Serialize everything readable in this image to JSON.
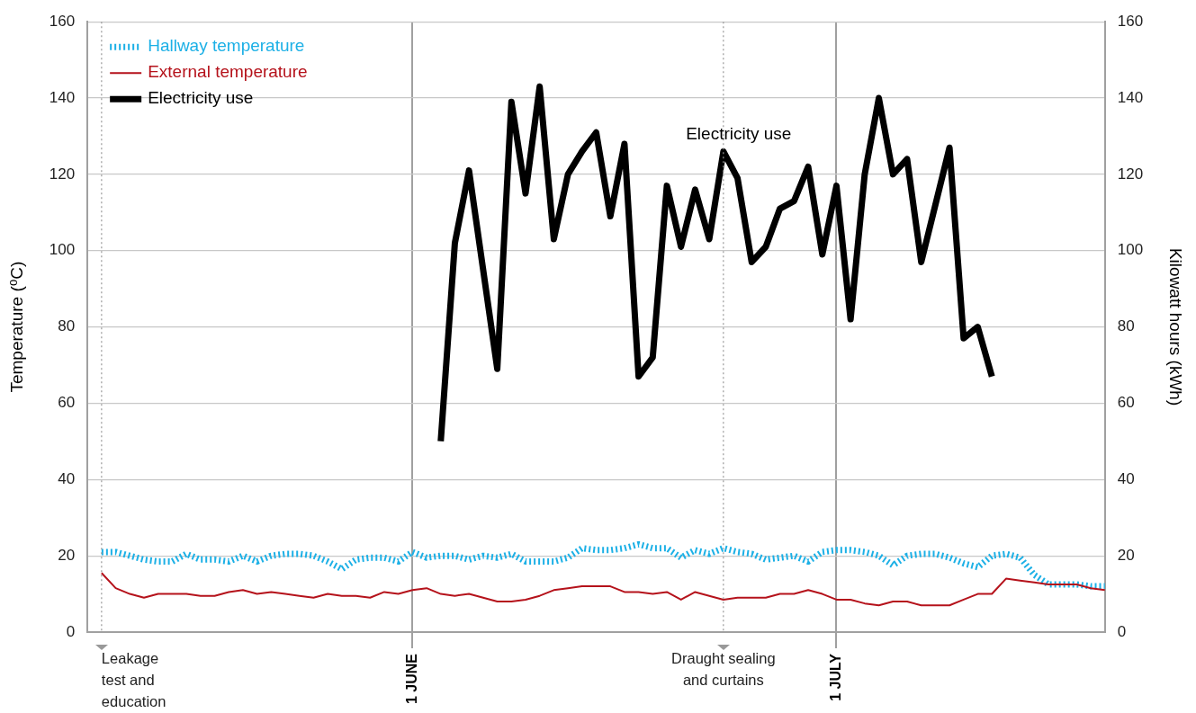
{
  "chart_data": {
    "type": "line",
    "xlabel": null,
    "ylabel": "Temperature (⁰C)",
    "y2label": "Kilowatt hours (kWh)",
    "xlim": [
      "--05-09",
      "--07-20"
    ],
    "xticks": [
      {
        "value": "--06-01",
        "label": "1 JUNE"
      },
      {
        "value": "--07-01",
        "label": "1 JULY"
      }
    ],
    "ylim": [
      0,
      160
    ],
    "yticks": [
      0,
      20,
      40,
      60,
      80,
      100,
      120,
      140,
      160
    ],
    "y2lim": [
      0,
      160
    ],
    "y2ticks": [
      0,
      20,
      40,
      60,
      80,
      100,
      120,
      140,
      160
    ],
    "grid": true,
    "legend": "top left",
    "marker": "none",
    "x": [
      "--05-10",
      "--05-11",
      "--05-12",
      "--05-13",
      "--05-14",
      "--05-15",
      "--05-16",
      "--05-17",
      "--05-18",
      "--05-19",
      "--05-20",
      "--05-21",
      "--05-22",
      "--05-23",
      "--05-24",
      "--05-25",
      "--05-26",
      "--05-27",
      "--05-28",
      "--05-29",
      "--05-30",
      "--05-31",
      "--06-01",
      "--06-02",
      "--06-03",
      "--06-04",
      "--06-05",
      "--06-06",
      "--06-07",
      "--06-08",
      "--06-09",
      "--06-10",
      "--06-11",
      "--06-12",
      "--06-13",
      "--06-14",
      "--06-15",
      "--06-16",
      "--06-17",
      "--06-18",
      "--06-19",
      "--06-20",
      "--06-21",
      "--06-22",
      "--06-23",
      "--06-24",
      "--06-25",
      "--06-26",
      "--06-27",
      "--06-28",
      "--06-29",
      "--06-30",
      "--07-01",
      "--07-02",
      "--07-03",
      "--07-04",
      "--07-05",
      "--07-06",
      "--07-07",
      "--07-08",
      "--07-09",
      "--07-10",
      "--07-11",
      "--07-12",
      "--07-13",
      "--07-14",
      "--07-15",
      "--07-16",
      "--07-17",
      "--07-18",
      "--07-19",
      "--07-20"
    ],
    "series": [
      {
        "name": "Hallway temperature",
        "color": "#1cb0e6",
        "line_style": "dotted",
        "values": [
          21,
          21,
          20,
          19,
          18.5,
          18.5,
          20.5,
          19,
          19,
          18.5,
          20,
          18.5,
          20,
          20.5,
          20.5,
          20,
          18.5,
          16.5,
          19,
          19.5,
          19.5,
          18.5,
          21,
          19.5,
          20,
          20,
          19,
          20,
          19.5,
          20.5,
          18.5,
          18.5,
          18.5,
          19.5,
          22,
          21.5,
          21.5,
          22,
          23,
          22,
          22,
          19.5,
          21.5,
          20.5,
          22,
          21,
          20.5,
          19,
          19.5,
          20,
          18.5,
          21,
          21.5,
          21.5,
          21,
          20,
          17.5,
          20,
          20.5,
          20.5,
          19.5,
          18,
          17,
          20,
          20.5,
          19.5,
          15,
          12.5,
          12.5,
          12.5,
          12,
          12
        ]
      },
      {
        "name": "External temperature",
        "color": "#b5121b",
        "line_style": "solid",
        "values": [
          15.5,
          11.5,
          10,
          9,
          10,
          10,
          10,
          9.5,
          9.5,
          10.5,
          11,
          10,
          10.5,
          10,
          9.5,
          9,
          10,
          9.5,
          9.5,
          9,
          10.5,
          10,
          11,
          11.5,
          10,
          9.5,
          10,
          9,
          8,
          8,
          8.5,
          9.5,
          11,
          11.5,
          12,
          12,
          12,
          10.5,
          10.5,
          10,
          10.5,
          8.5,
          10.5,
          9.5,
          8.5,
          9,
          9,
          9,
          10,
          10,
          11,
          10,
          8.5,
          8.5,
          7.5,
          7,
          8,
          8,
          7,
          7,
          7,
          8.5,
          10,
          10,
          14,
          13.5,
          13,
          12.5,
          12.5,
          12.5,
          11.5,
          11
        ]
      },
      {
        "name": "Electricity use",
        "color": "#000000",
        "line_style": "solid",
        "axis": "y2",
        "x": [
          "--06-03",
          "--06-04",
          "--06-05",
          "--06-06",
          "--06-07",
          "--06-08",
          "--06-09",
          "--06-10",
          "--06-11",
          "--06-12",
          "--06-13",
          "--06-14",
          "--06-15",
          "--06-16",
          "--06-17",
          "--06-18",
          "--06-19",
          "--06-20",
          "--06-21",
          "--06-22",
          "--06-23",
          "--06-24",
          "--06-25",
          "--06-26",
          "--06-27",
          "--06-28",
          "--06-29",
          "--06-30",
          "--07-01",
          "--07-02",
          "--07-03",
          "--07-04",
          "--07-05",
          "--07-06",
          "--07-07",
          "--07-08",
          "--07-09",
          "--07-10",
          "--07-11",
          "--07-12"
        ],
        "values": [
          50,
          102,
          121,
          95,
          69,
          139,
          115,
          143,
          103,
          120,
          126,
          131,
          109,
          128,
          67,
          72,
          117,
          101,
          116,
          103,
          126,
          119,
          97,
          101,
          111,
          113,
          122,
          99,
          117,
          82,
          120,
          140,
          120,
          124,
          97,
          112,
          127,
          77,
          80,
          67
        ]
      }
    ],
    "ref_lines": [
      {
        "axis": "x",
        "value": "--05-10",
        "label": "Leakage test and education",
        "line_style": "dotted",
        "color": "#999999"
      },
      {
        "axis": "x",
        "value": "--06-23",
        "label": "Draught sealing and curtains",
        "line_style": "dotted",
        "color": "#999999"
      }
    ],
    "annotations": [
      "Electricity use"
    ]
  }
}
